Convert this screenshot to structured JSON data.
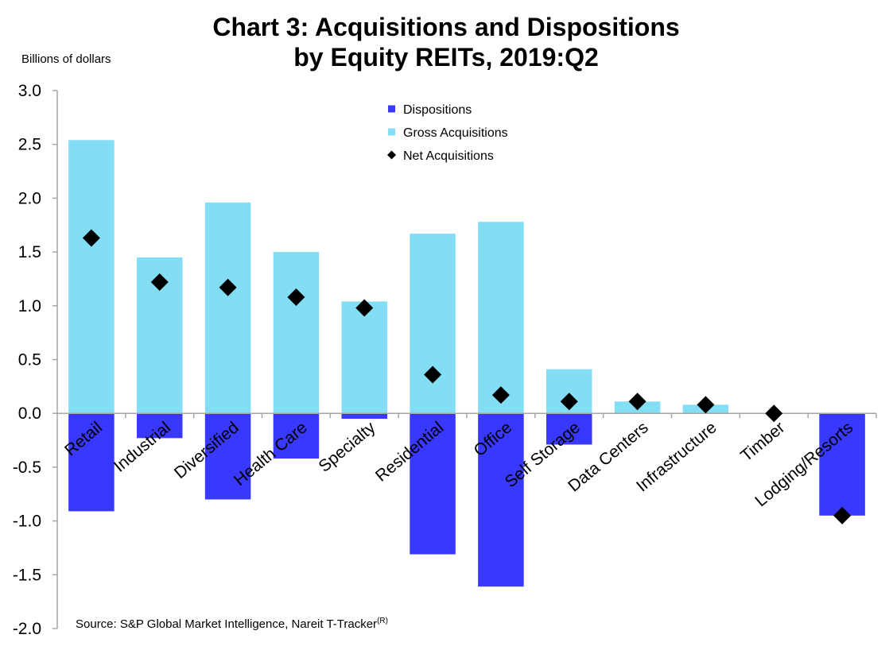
{
  "chart_data": {
    "type": "bar",
    "title": [
      "Chart 3: Acquisitions and Dispositions",
      "by Equity REITs, 2019:Q2"
    ],
    "ylabel": "Billions of dollars",
    "ylim": [
      -2.0,
      3.0
    ],
    "yticks": [
      "3.0",
      "2.5",
      "2.0",
      "1.5",
      "1.0",
      "0.5",
      "0.0",
      "-0.5",
      "-1.0",
      "-1.5",
      "-2.0"
    ],
    "categories": [
      "Retail",
      "Industrial",
      "Diversified",
      "Health Care",
      "Specialty",
      "Residential",
      "Office",
      "Self Storage",
      "Data Centers",
      "Infrastructure",
      "Timber",
      "Lodging/Resorts"
    ],
    "series": [
      {
        "name": "Dispositions",
        "kind": "bar",
        "color": "#3838FF",
        "values": [
          -0.91,
          -0.23,
          -0.8,
          -0.42,
          -0.05,
          -1.31,
          -1.61,
          -0.29,
          0.0,
          0.0,
          0.0,
          -0.95
        ]
      },
      {
        "name": "Gross Acquisitions",
        "kind": "bar",
        "color": "#82DDF5",
        "values": [
          2.54,
          1.45,
          1.96,
          1.5,
          1.04,
          1.67,
          1.78,
          0.41,
          0.11,
          0.08,
          0.0,
          0.0
        ]
      },
      {
        "name": "Net Acquisitions",
        "kind": "marker",
        "color": "#000000",
        "values": [
          1.63,
          1.22,
          1.17,
          1.08,
          0.98,
          0.36,
          0.17,
          0.11,
          0.11,
          0.08,
          0.0,
          -0.95
        ]
      }
    ],
    "legend_position": "top-center",
    "grid": false,
    "source": "Source: S&P Global Market Intelligence, Nareit T-Tracker",
    "source_superscript": "(R)"
  }
}
